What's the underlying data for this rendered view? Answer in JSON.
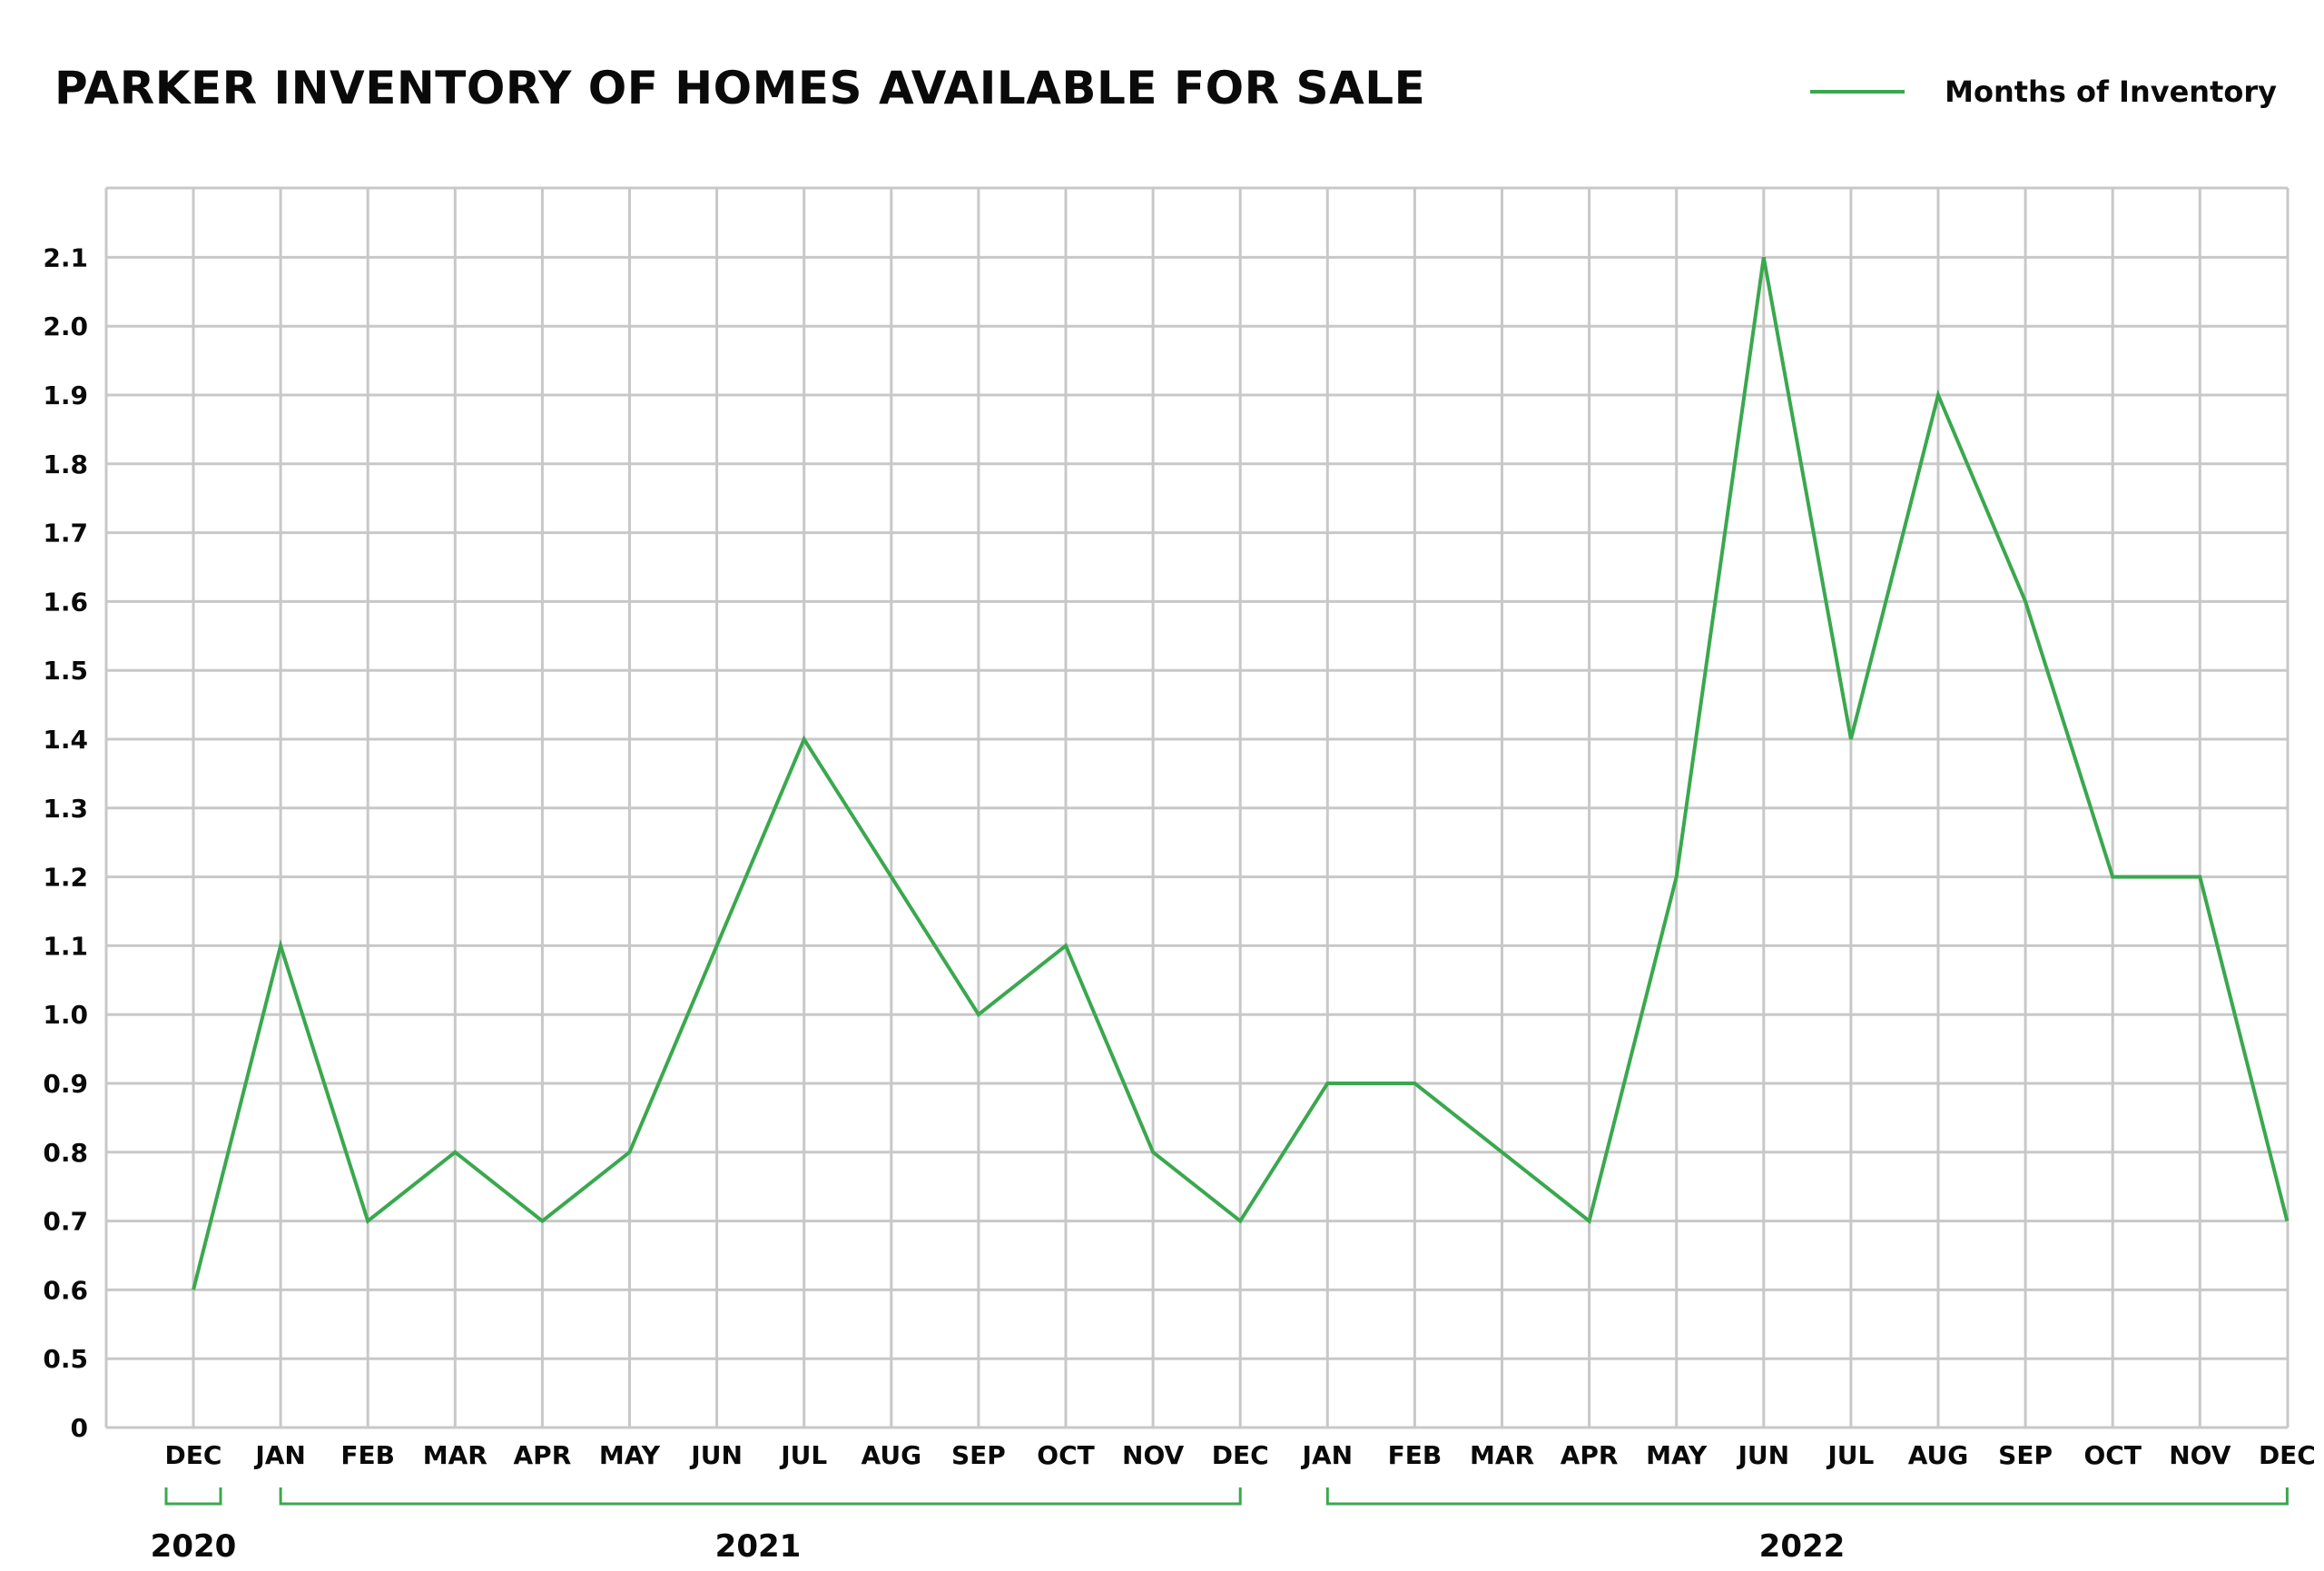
{
  "colors": {
    "line": "#3aa84e",
    "grid": "#c8c8c8",
    "text": "#0a0a0a"
  },
  "chart_data": {
    "type": "line",
    "title": "PARKER INVENTORY OF HOMES AVAILABLE FOR SALE",
    "xlabel": "",
    "ylabel": "",
    "legend": "top-right",
    "grid": true,
    "y_ticks": [
      "0",
      "0.5",
      "0.6",
      "0.7",
      "0.8",
      "0.9",
      "1.0",
      "1.1",
      "1.2",
      "1.3",
      "1.4",
      "1.5",
      "1.6",
      "1.7",
      "1.8",
      "1.9",
      "2.0",
      "2.1"
    ],
    "categories": [
      "DEC",
      "JAN",
      "FEB",
      "MAR",
      "APR",
      "MAY",
      "JUN",
      "JUL",
      "AUG",
      "SEP",
      "OCT",
      "NOV",
      "DEC",
      "JAN",
      "FEB",
      "MAR",
      "APR",
      "MAY",
      "JUN",
      "JUL",
      "AUG",
      "SEP",
      "OCT",
      "NOV",
      "DEC"
    ],
    "year_groups": [
      {
        "label": "2020",
        "start": 0,
        "end": 0
      },
      {
        "label": "2021",
        "start": 1,
        "end": 12
      },
      {
        "label": "2022",
        "start": 13,
        "end": 24
      }
    ],
    "series": [
      {
        "name": "Months of Inventory",
        "values": [
          0.6,
          1.1,
          0.7,
          0.8,
          0.7,
          0.8,
          1.1,
          1.4,
          1.2,
          1.0,
          1.1,
          0.8,
          0.7,
          0.9,
          0.9,
          0.8,
          0.7,
          1.2,
          2.1,
          1.4,
          1.9,
          1.6,
          1.2,
          1.2,
          0.7
        ]
      }
    ]
  }
}
